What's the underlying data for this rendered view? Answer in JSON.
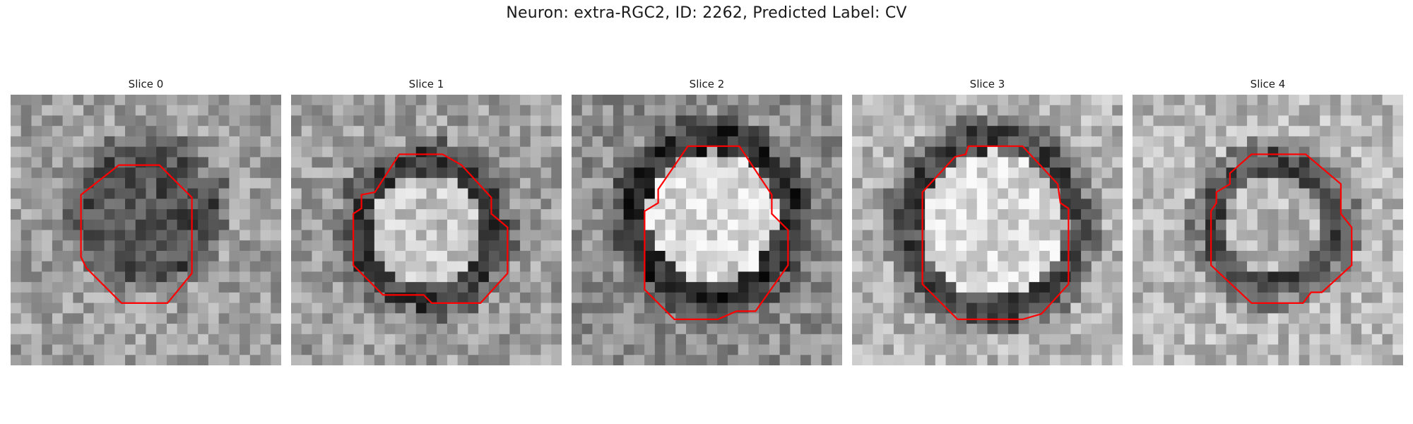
{
  "figure": {
    "title": "Neuron: extra-RGC2, ID: 2262, Predicted Label: CV"
  },
  "colors": {
    "contour": "#ff0000",
    "colormap": "grayscale"
  },
  "panels": [
    {
      "title": "Slice 0"
    },
    {
      "title": "Slice 1"
    },
    {
      "title": "Slice 2"
    },
    {
      "title": "Slice 3"
    },
    {
      "title": "Slice 4"
    }
  ]
}
